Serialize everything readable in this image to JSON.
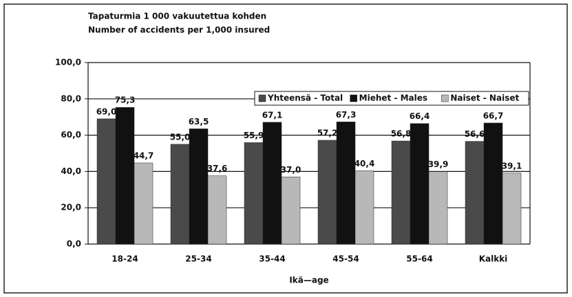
{
  "chart_data": {
    "type": "bar",
    "title": "Tapaturmia 1 000 vakuutettua kohden",
    "subtitle": "Number of accidents per 1,000 insured",
    "x_label": "Ikä—age",
    "categories": [
      "18-24",
      "25-34",
      "35-44",
      "45-54",
      "55-64",
      "Kalkki"
    ],
    "series": [
      {
        "name": "Yhteensä - Total",
        "color": "#4a4a4a",
        "values": [
          69.0,
          55.0,
          55.9,
          57.2,
          56.8,
          56.6
        ],
        "value_labels": [
          "69,0",
          "55,0",
          "55,9",
          "57,2",
          "56,8",
          "56,6"
        ]
      },
      {
        "name": "Miehet - Males",
        "color": "#111111",
        "values": [
          75.3,
          63.5,
          67.1,
          67.3,
          66.4,
          66.7
        ],
        "value_labels": [
          "75,3",
          "63,5",
          "67,1",
          "67,3",
          "66,4",
          "66,7"
        ]
      },
      {
        "name": "Naiset - Naiset",
        "color": "#b8b8b8",
        "values": [
          44.7,
          37.6,
          37.0,
          40.4,
          39.9,
          39.1
        ],
        "value_labels": [
          "44,7",
          "37,6",
          "37,0",
          "40,4",
          "39,9",
          "39,1"
        ]
      }
    ],
    "ylim": [
      0,
      100
    ],
    "yticks": [
      {
        "value": 0,
        "label": "0,0"
      },
      {
        "value": 20,
        "label": "20,0"
      },
      {
        "value": 40,
        "label": "40,0"
      },
      {
        "value": 60,
        "label": "60,0"
      },
      {
        "value": 80,
        "label": "80,0"
      },
      {
        "value": 100,
        "label": "100,0"
      }
    ],
    "grid": true,
    "legend": "top-right"
  }
}
